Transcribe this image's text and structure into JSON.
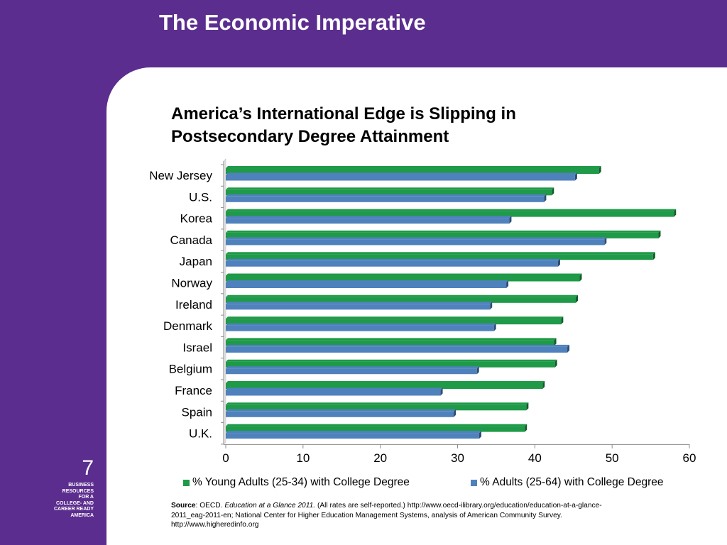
{
  "slide": {
    "title": "The Economic Imperative",
    "page_number": "7",
    "branding_lines": [
      "BUSINESS",
      "RESOURCES",
      "FOR A",
      "COLLEGE- AND",
      "CAREER READY",
      "AMERICA"
    ]
  },
  "source": {
    "label": "Source",
    "text_1": ": OECD. ",
    "publication": "Education at a Glance 2011.",
    "text_2": " (All rates are self-reported.) http://www.oecd-ilibrary.org/education/education-at-a-glance-2011_eag-2011-en; National Center for Higher Education Management Systems, analysis of American Community Survey.  http://www.higheredinfo.org"
  },
  "colors": {
    "background_purple": "#5b2d8e",
    "young_adults_green": "#1f9a48",
    "adults_blue": "#4f81bd"
  },
  "chart_data": {
    "type": "bar",
    "orientation": "horizontal",
    "title_lines": [
      "America’s International Edge is Slipping in",
      "Postsecondary Degree Attainment"
    ],
    "categories": [
      "New Jersey",
      "U.S.",
      "Korea",
      "Canada",
      "Japan",
      "Norway",
      "Ireland",
      "Denmark",
      "Israel",
      "Belgium",
      "France",
      "Spain",
      "U.K."
    ],
    "series": [
      {
        "name": "% Young Adults (25-34) with College Degree",
        "color": "#1f9a48",
        "values": [
          48.3,
          42.2,
          58.0,
          56.0,
          55.3,
          45.8,
          45.3,
          43.4,
          42.5,
          42.6,
          41.0,
          38.9,
          38.7
        ]
      },
      {
        "name": "% Adults (25-64) with College Degree",
        "color": "#4f81bd",
        "values": [
          45.2,
          41.2,
          36.7,
          49.0,
          43.0,
          36.3,
          34.2,
          34.7,
          44.2,
          32.5,
          27.8,
          29.5,
          32.8
        ]
      }
    ],
    "xlim": [
      0,
      60
    ],
    "xticks": [
      "0",
      "10",
      "20",
      "30",
      "40",
      "50",
      "60"
    ],
    "grid": false,
    "legend_position": "bottom"
  }
}
